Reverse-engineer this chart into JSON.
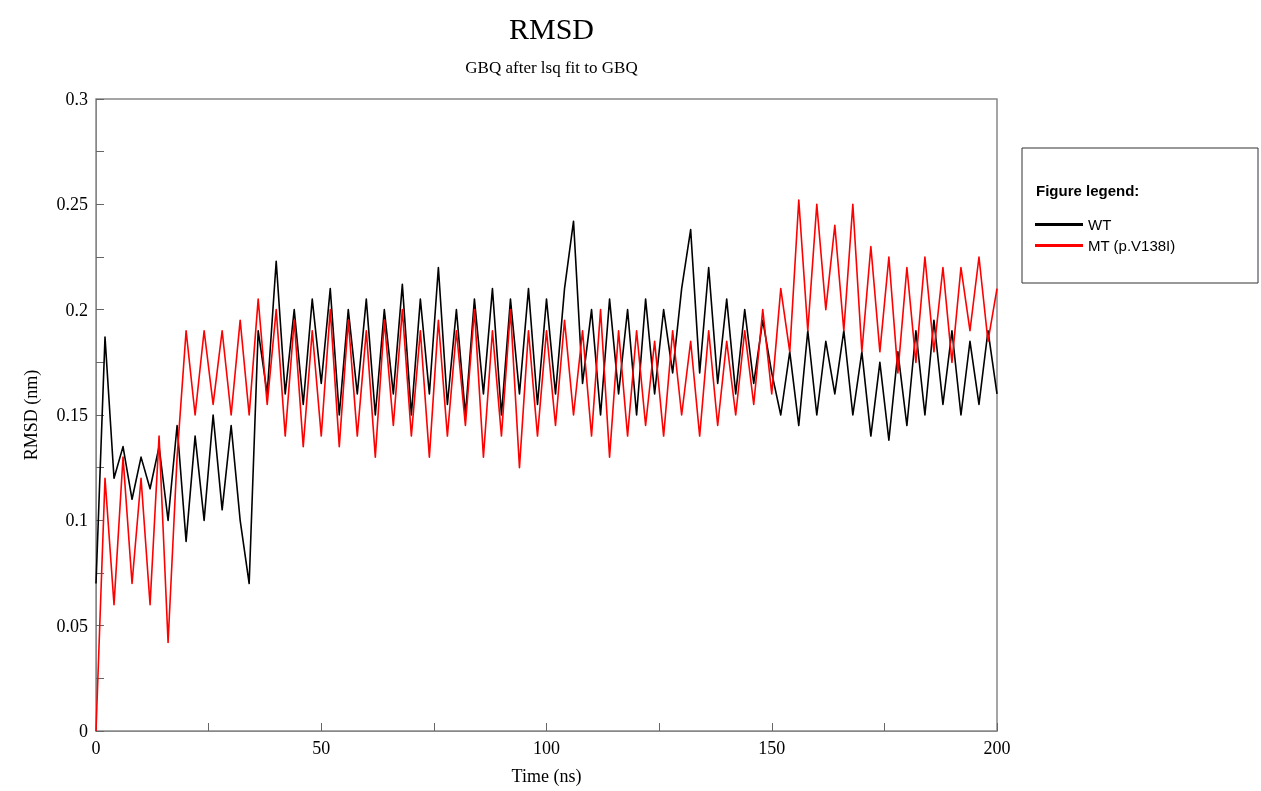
{
  "chart_data": {
    "type": "line",
    "title": "RMSD",
    "subtitle": "GBQ after lsq fit to GBQ",
    "xlabel": "Time (ns)",
    "ylabel": "RMSD (nm)",
    "legend_title": "Figure legend:",
    "legend": "right",
    "x": [
      0,
      2,
      4,
      6,
      8,
      10,
      12,
      14,
      16,
      18,
      20,
      22,
      24,
      26,
      28,
      30,
      32,
      34,
      36,
      38,
      40,
      42,
      44,
      46,
      48,
      50,
      52,
      54,
      56,
      58,
      60,
      62,
      64,
      66,
      68,
      70,
      72,
      74,
      76,
      78,
      80,
      82,
      84,
      86,
      88,
      90,
      92,
      94,
      96,
      98,
      100,
      102,
      104,
      106,
      108,
      110,
      112,
      114,
      116,
      118,
      120,
      122,
      124,
      126,
      128,
      130,
      132,
      134,
      136,
      138,
      140,
      142,
      144,
      146,
      148,
      150,
      152,
      154,
      156,
      158,
      160,
      162,
      164,
      166,
      168,
      170,
      172,
      174,
      176,
      178,
      180,
      182,
      184,
      186,
      188,
      190,
      192,
      194,
      196,
      198,
      200
    ],
    "series": [
      {
        "name": "WT",
        "color": "#000000",
        "values": [
          0.07,
          0.187,
          0.12,
          0.135,
          0.11,
          0.13,
          0.115,
          0.135,
          0.1,
          0.145,
          0.09,
          0.14,
          0.1,
          0.15,
          0.105,
          0.145,
          0.1,
          0.07,
          0.19,
          0.16,
          0.223,
          0.16,
          0.2,
          0.155,
          0.205,
          0.165,
          0.21,
          0.15,
          0.2,
          0.16,
          0.205,
          0.15,
          0.2,
          0.16,
          0.212,
          0.15,
          0.205,
          0.16,
          0.22,
          0.155,
          0.2,
          0.15,
          0.205,
          0.16,
          0.21,
          0.15,
          0.205,
          0.16,
          0.21,
          0.155,
          0.205,
          0.16,
          0.21,
          0.242,
          0.165,
          0.2,
          0.15,
          0.205,
          0.16,
          0.2,
          0.15,
          0.205,
          0.16,
          0.2,
          0.17,
          0.21,
          0.238,
          0.17,
          0.22,
          0.165,
          0.205,
          0.16,
          0.2,
          0.165,
          0.195,
          0.17,
          0.15,
          0.18,
          0.145,
          0.19,
          0.15,
          0.185,
          0.16,
          0.19,
          0.15,
          0.18,
          0.14,
          0.175,
          0.138,
          0.18,
          0.145,
          0.19,
          0.15,
          0.195,
          0.155,
          0.19,
          0.15,
          0.185,
          0.155,
          0.19,
          0.16
        ]
      },
      {
        "name": "MT (p.V138I)",
        "color": "#ff0000",
        "values": [
          0,
          0.12,
          0.06,
          0.13,
          0.07,
          0.12,
          0.06,
          0.14,
          0.042,
          0.13,
          0.19,
          0.15,
          0.19,
          0.155,
          0.19,
          0.15,
          0.195,
          0.15,
          0.205,
          0.155,
          0.2,
          0.14,
          0.195,
          0.135,
          0.19,
          0.14,
          0.2,
          0.135,
          0.195,
          0.14,
          0.19,
          0.13,
          0.195,
          0.145,
          0.2,
          0.14,
          0.19,
          0.13,
          0.195,
          0.14,
          0.19,
          0.145,
          0.2,
          0.13,
          0.19,
          0.14,
          0.2,
          0.125,
          0.19,
          0.14,
          0.19,
          0.145,
          0.195,
          0.15,
          0.19,
          0.14,
          0.2,
          0.13,
          0.19,
          0.14,
          0.19,
          0.145,
          0.185,
          0.14,
          0.19,
          0.15,
          0.185,
          0.14,
          0.19,
          0.145,
          0.185,
          0.15,
          0.19,
          0.155,
          0.2,
          0.16,
          0.21,
          0.18,
          0.252,
          0.19,
          0.25,
          0.2,
          0.24,
          0.19,
          0.25,
          0.18,
          0.23,
          0.18,
          0.225,
          0.17,
          0.22,
          0.175,
          0.225,
          0.18,
          0.22,
          0.175,
          0.22,
          0.19,
          0.225,
          0.185,
          0.21
        ]
      }
    ],
    "xlim": [
      0,
      200
    ],
    "xticks": [
      0,
      {
        "value": 25,
        "label": null
      },
      50,
      {
        "value": 75,
        "label": null
      },
      100,
      {
        "value": 125,
        "label": null
      },
      150,
      {
        "value": 175,
        "label": null
      },
      200
    ],
    "ylim": [
      0,
      0.3
    ],
    "yticks": [
      0,
      {
        "value": 0.025,
        "label": null
      },
      0.05,
      {
        "value": 0.075,
        "label": null
      },
      0.1,
      {
        "value": 0.125,
        "label": null
      },
      0.15,
      {
        "value": 0.175,
        "label": null
      },
      0.2,
      {
        "value": 0.225,
        "label": null
      },
      0.25,
      {
        "value": 0.275,
        "label": null
      },
      0.3
    ],
    "grid": false,
    "marker": "none",
    "line_style": "solid"
  }
}
